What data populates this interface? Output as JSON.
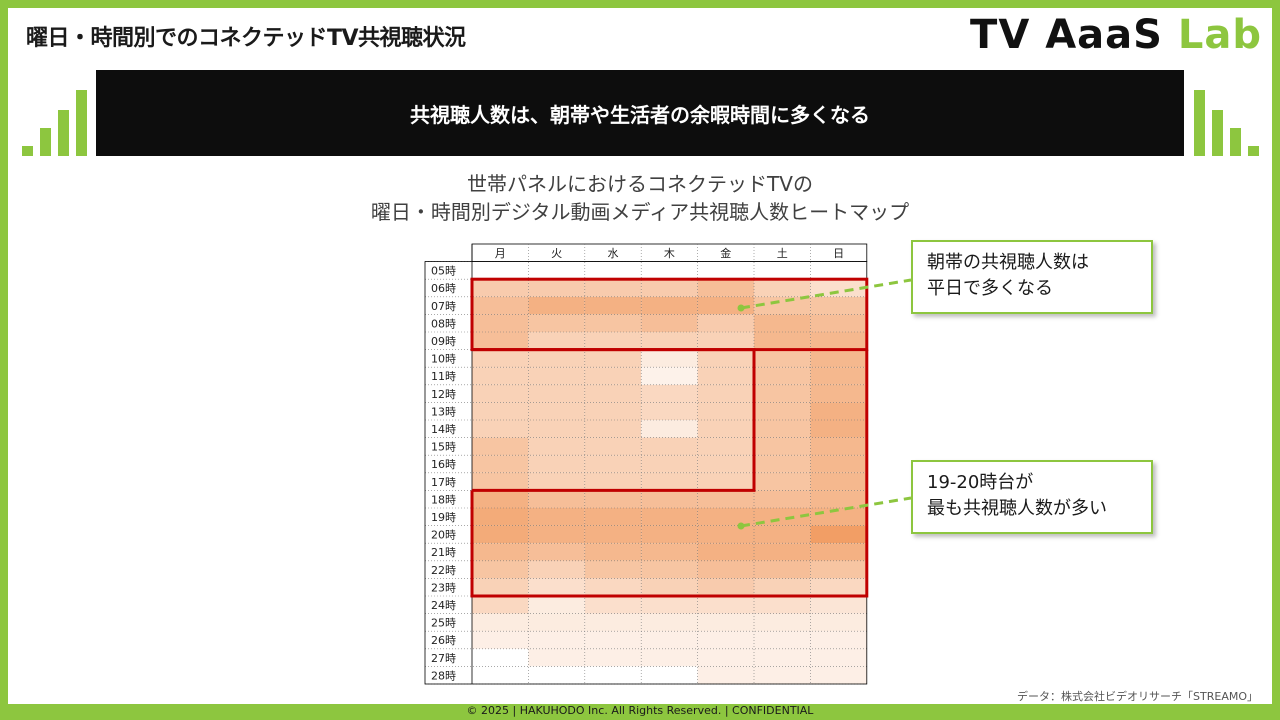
{
  "header": {
    "title": "曜日・時間別でのコネクテッドTV共視聴状況",
    "brand_main": "TV AaaS ",
    "brand_accent": "Lab"
  },
  "banner": {
    "text": "共視聴人数は、朝帯や生活者の余暇時間に多くなる"
  },
  "chart_title": {
    "line1": "世帯パネルにおけるコネクテッドTVの",
    "line2": "曜日・時間別デジタル動画メディア共視聴人数ヒートマップ"
  },
  "chart_data": {
    "type": "heatmap",
    "title": "世帯パネルにおけるコネクテッドTVの 曜日・時間別デジタル動画メディア共視聴人数ヒートマップ",
    "columns": [
      "月",
      "火",
      "水",
      "木",
      "金",
      "土",
      "日"
    ],
    "rows": [
      "05時",
      "06時",
      "07時",
      "08時",
      "09時",
      "10時",
      "11時",
      "12時",
      "13時",
      "14時",
      "15時",
      "16時",
      "17時",
      "18時",
      "19時",
      "20時",
      "21時",
      "22時",
      "23時",
      "24時",
      "25時",
      "26時",
      "27時",
      "28時"
    ],
    "values": [
      [
        0,
        0,
        0,
        0,
        0,
        0,
        0
      ],
      [
        0.4,
        0.4,
        0.4,
        0.4,
        0.5,
        0.35,
        0.25
      ],
      [
        0.5,
        0.6,
        0.6,
        0.6,
        0.6,
        0.45,
        0.45
      ],
      [
        0.5,
        0.45,
        0.45,
        0.5,
        0.4,
        0.55,
        0.5
      ],
      [
        0.5,
        0.35,
        0.35,
        0.35,
        0.35,
        0.55,
        0.55
      ],
      [
        0.35,
        0.35,
        0.35,
        0.15,
        0.35,
        0.45,
        0.55
      ],
      [
        0.35,
        0.35,
        0.35,
        0.1,
        0.35,
        0.45,
        0.55
      ],
      [
        0.35,
        0.35,
        0.35,
        0.3,
        0.35,
        0.45,
        0.55
      ],
      [
        0.35,
        0.35,
        0.35,
        0.3,
        0.35,
        0.45,
        0.6
      ],
      [
        0.35,
        0.35,
        0.35,
        0.15,
        0.35,
        0.45,
        0.6
      ],
      [
        0.45,
        0.35,
        0.35,
        0.35,
        0.35,
        0.45,
        0.55
      ],
      [
        0.45,
        0.35,
        0.35,
        0.35,
        0.35,
        0.45,
        0.55
      ],
      [
        0.45,
        0.35,
        0.35,
        0.35,
        0.35,
        0.45,
        0.55
      ],
      [
        0.6,
        0.5,
        0.5,
        0.5,
        0.5,
        0.5,
        0.55
      ],
      [
        0.65,
        0.6,
        0.6,
        0.6,
        0.6,
        0.6,
        0.6
      ],
      [
        0.65,
        0.6,
        0.6,
        0.6,
        0.6,
        0.6,
        0.75
      ],
      [
        0.55,
        0.5,
        0.55,
        0.55,
        0.6,
        0.6,
        0.6
      ],
      [
        0.45,
        0.35,
        0.45,
        0.45,
        0.5,
        0.5,
        0.45
      ],
      [
        0.35,
        0.25,
        0.3,
        0.35,
        0.4,
        0.35,
        0.3
      ],
      [
        0.3,
        0.15,
        0.25,
        0.25,
        0.25,
        0.25,
        0.2
      ],
      [
        0.15,
        0.15,
        0.15,
        0.15,
        0.15,
        0.15,
        0.15
      ],
      [
        0.12,
        0.12,
        0.12,
        0.12,
        0.12,
        0.12,
        0.12
      ],
      [
        0.0,
        0.12,
        0.12,
        0.12,
        0.12,
        0.12,
        0.12
      ],
      [
        0.0,
        0.0,
        0.0,
        0.0,
        0.12,
        0.12,
        0.12
      ]
    ],
    "color_low": "#ffffff",
    "color_high": "#ed7d31",
    "highlights": [
      {
        "name": "morning",
        "color": "#c00000"
      },
      {
        "name": "weekday-daytime-evening",
        "color": "#c00000"
      }
    ],
    "annotations": [
      {
        "text": "朝帯の共視聴人数は平日で多くなる"
      },
      {
        "text": "19-20時台が最も共視聴人数が多い"
      }
    ]
  },
  "callouts": [
    {
      "line1": "朝帯の共視聴人数は",
      "line2": "平日で多くなる"
    },
    {
      "line1": "19-20時台が",
      "line2": "最も共視聴人数が多い"
    }
  ],
  "source": "データ：株式会社ビデオリサーチ「STREAMO」",
  "footer": "© 2025 | HAKUHODO Inc. All Rights Reserved. | CONFIDENTIAL",
  "colors": {
    "accent": "#8dc63f",
    "banner_bg": "#0d0d0d",
    "highlight": "#c00000"
  }
}
